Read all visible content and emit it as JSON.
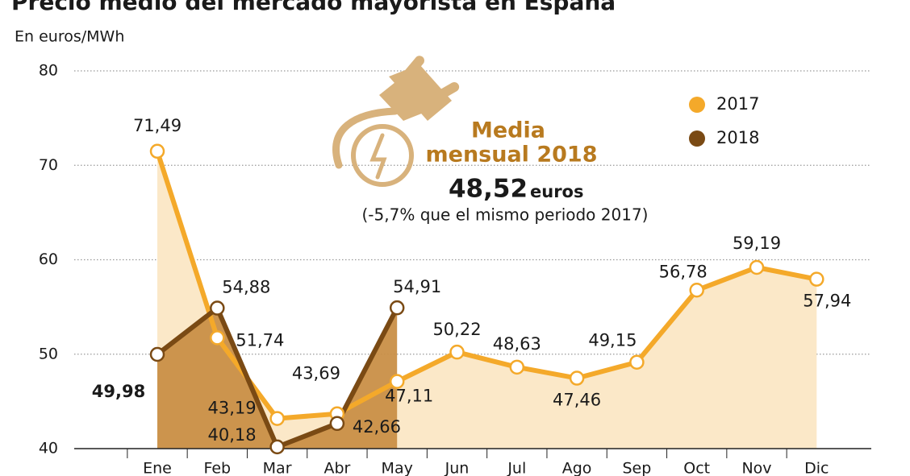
{
  "chart_data": {
    "type": "line",
    "title": "Precio medio del mercado mayorista en España",
    "subtitle": "En euros/MWh",
    "annotation": {
      "line1": "Media",
      "line2": "mensual 2018",
      "value": "48,52",
      "unit": "euros",
      "note": "(-5,7% que el mismo periodo 2017)"
    },
    "categories": [
      "Ene",
      "Feb",
      "Mar",
      "Abr",
      "May",
      "Jun",
      "Jul",
      "Ago",
      "Sep",
      "Oct",
      "Nov",
      "Dic"
    ],
    "series": [
      {
        "name": "2017",
        "color": "#f4a92a",
        "area_color": "#fbe8c8",
        "values": [
          71.49,
          51.74,
          43.19,
          43.69,
          47.11,
          50.22,
          48.63,
          47.46,
          49.15,
          56.78,
          59.19,
          57.94
        ],
        "value_labels": [
          "71,49",
          "51,74",
          "43,19",
          "43,69",
          "47,11",
          "50,22",
          "48,63",
          "47,46",
          "49,15",
          "56,78",
          "59,19",
          "57,94"
        ]
      },
      {
        "name": "2018",
        "color": "#7a4a14",
        "area_color": "#c98f47",
        "values": [
          49.98,
          54.88,
          40.18,
          42.66,
          54.91,
          null,
          null,
          null,
          null,
          null,
          null,
          null
        ],
        "value_labels": [
          "49,98",
          "54,88",
          "40,18",
          "42,66",
          "54,91",
          null,
          null,
          null,
          null,
          null,
          null,
          null
        ]
      }
    ],
    "ylim": [
      40,
      80
    ],
    "yticks": [
      40,
      50,
      60,
      70,
      80
    ],
    "grid": true,
    "legend": "top-right"
  }
}
